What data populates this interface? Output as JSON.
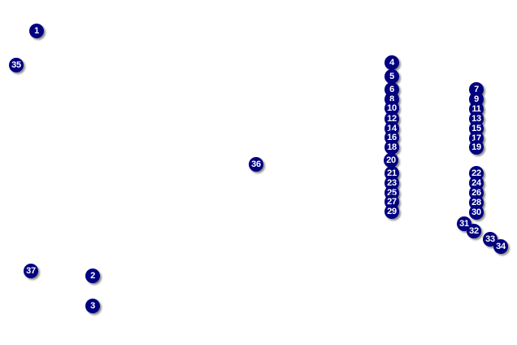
{
  "marker_color": "#000080",
  "label_color": "#ffffff",
  "markers": [
    "1",
    "2",
    "3",
    "4",
    "5",
    "6",
    "7",
    "8",
    "9",
    "10",
    "11",
    "12",
    "13",
    "14",
    "15",
    "16",
    "17",
    "18",
    "19",
    "20",
    "21",
    "22",
    "23",
    "24",
    "25",
    "26",
    "27",
    "28",
    "29",
    "30",
    "31",
    "32",
    "33",
    "34",
    "35",
    "36",
    "37"
  ]
}
